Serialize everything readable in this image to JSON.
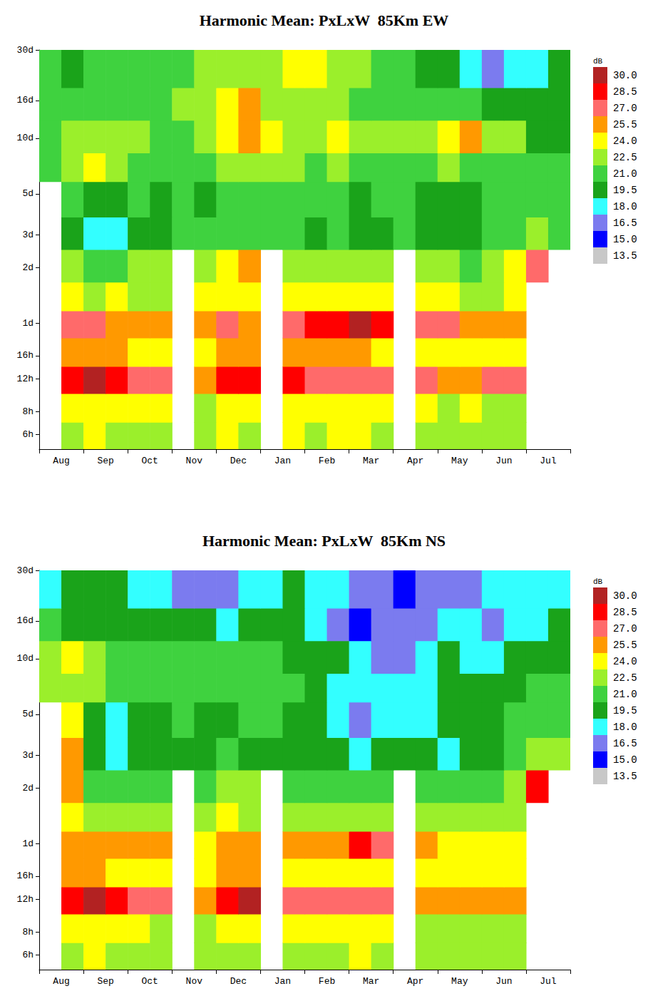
{
  "chart_data": [
    {
      "type": "heatmap",
      "title": "Harmonic Mean: PxLxW  85Km EW",
      "categories": [
        "Aug",
        "Sep",
        "Oct",
        "Nov",
        "Dec",
        "Jan",
        "Feb",
        "Mar",
        "Apr",
        "May",
        "Jun",
        "Jul"
      ],
      "log": "y",
      "grid": false,
      "ylim": [
        5,
        720
      ],
      "yticks": [
        {
          "value": 6,
          "label": "6h"
        },
        {
          "value": 8,
          "label": "8h"
        },
        {
          "value": 12,
          "label": "12h"
        },
        {
          "value": 16,
          "label": "16h"
        },
        {
          "value": 24,
          "label": "1d"
        },
        {
          "value": 48,
          "label": "2d"
        },
        {
          "value": 72,
          "label": "3d"
        },
        {
          "value": 120,
          "label": "5d"
        },
        {
          "value": 240,
          "label": "10d"
        },
        {
          "value": 384,
          "label": "16d"
        },
        {
          "value": 720,
          "label": "30d"
        }
      ],
      "y_bins": [
        5,
        7,
        10,
        14,
        20,
        28,
        40,
        60,
        90,
        140,
        200,
        300,
        450,
        720
      ],
      "cells": [
        [
          null,
          22,
          22.5,
          22,
          21.5,
          22,
          null,
          21.5,
          22.5,
          22,
          null,
          22.5,
          22,
          22.5,
          23,
          22,
          null,
          22,
          21.5,
          22,
          21.5,
          21,
          null,
          null
        ],
        [
          null,
          23,
          23.5,
          23,
          22.5,
          22.5,
          null,
          22,
          23,
          23,
          null,
          23.5,
          23,
          23,
          23.5,
          22.5,
          null,
          22.5,
          22,
          22.5,
          22,
          22,
          null,
          null
        ],
        [
          null,
          28,
          28.6,
          27.5,
          26,
          25.5,
          null,
          24.5,
          27,
          27.5,
          null,
          28,
          26.5,
          26,
          26.5,
          25.5,
          null,
          26,
          24.5,
          25,
          25.5,
          25.5,
          null,
          null
        ],
        [
          null,
          24,
          24.5,
          24,
          23.5,
          23,
          null,
          23,
          24,
          24,
          null,
          24.5,
          24,
          24,
          24,
          23.5,
          null,
          23.5,
          23,
          23,
          23,
          23.5,
          null,
          null
        ],
        [
          null,
          26.5,
          25.5,
          25,
          24.5,
          24,
          null,
          24,
          25.5,
          25,
          null,
          26,
          27,
          27.5,
          28.6,
          27,
          null,
          26,
          25.5,
          24.5,
          24,
          24,
          null,
          null
        ],
        [
          null,
          22.5,
          22,
          22.5,
          22,
          22,
          null,
          22.5,
          23,
          22.5,
          null,
          23,
          23,
          22.5,
          23,
          22.5,
          null,
          23,
          22.5,
          22,
          22,
          22.5,
          null,
          null
        ],
        [
          null,
          21,
          20,
          20.5,
          21,
          21.5,
          null,
          21,
          22.5,
          24.5,
          null,
          22,
          21.5,
          22,
          21.5,
          21,
          null,
          21.5,
          21,
          20.5,
          21,
          23,
          25.5,
          null
        ],
        [
          null,
          19,
          17,
          17.5,
          18.5,
          19,
          19.5,
          19.5,
          20,
          19.5,
          19.5,
          20,
          19,
          19.5,
          19,
          19,
          20,
          19,
          18.5,
          19,
          19.5,
          20,
          21,
          20
        ],
        [
          null,
          19.5,
          18.5,
          19,
          19.5,
          19,
          19.5,
          19,
          19.5,
          20,
          20.5,
          19.5,
          20,
          19.5,
          19,
          20,
          19.5,
          19,
          18.5,
          19,
          19.5,
          20,
          20.5,
          20
        ],
        [
          20,
          21,
          22.5,
          21,
          20.5,
          20,
          20,
          20.5,
          21,
          21.5,
          21,
          21,
          20.5,
          21,
          20,
          20.5,
          20,
          20.5,
          21,
          20,
          20.5,
          20,
          19.5,
          19.5
        ],
        [
          20.5,
          21.5,
          21,
          21.5,
          21,
          20,
          20.5,
          21,
          22.5,
          24.5,
          22.5,
          22,
          21.5,
          23,
          22,
          22,
          21.5,
          22,
          23.5,
          24.5,
          22,
          21,
          19,
          18.5
        ],
        [
          20,
          20.5,
          20,
          19.5,
          20,
          19.5,
          21,
          21.5,
          23,
          24.5,
          22,
          21,
          21.5,
          21,
          20.5,
          20.5,
          20.5,
          20,
          20.5,
          19.5,
          18.5,
          19,
          18,
          19
        ],
        [
          19.5,
          19,
          19.5,
          20,
          19.5,
          20,
          20.5,
          21.5,
          21,
          21.5,
          22,
          23.5,
          23,
          22,
          21.5,
          20,
          19.5,
          18.5,
          18,
          17.5,
          16,
          17,
          17.5,
          19
        ]
      ],
      "colorbar": {
        "label": "dB",
        "ticks": [
          13.5,
          {
            "value": 15,
            "label": "15.0"
          },
          16.5,
          {
            "value": 18,
            "label": "18.0"
          },
          19.5,
          {
            "value": 21,
            "label": "21.0"
          },
          22.5,
          {
            "value": 24,
            "label": "24.0"
          },
          25.5,
          {
            "value": 27,
            "label": "27.0"
          },
          28.5,
          {
            "value": 30,
            "label": "30.0"
          }
        ],
        "colors": [
          "#c8c8c8",
          "#0000ff",
          "#7b7bef",
          "#33ffff",
          "#1aa31a",
          "#3fd23f",
          "#9bef2b",
          "#ffff00",
          "#ff9900",
          "#ff6a6a",
          "#ff0000",
          "#b22222"
        ]
      }
    },
    {
      "type": "heatmap",
      "title": "Harmonic Mean: PxLxW  85Km NS",
      "categories": [
        "Aug",
        "Sep",
        "Oct",
        "Nov",
        "Dec",
        "Jan",
        "Feb",
        "Mar",
        "Apr",
        "May",
        "Jun",
        "Jul"
      ],
      "log": "y",
      "grid": false,
      "ylim": [
        5,
        720
      ],
      "yticks": [
        {
          "value": 6,
          "label": "6h"
        },
        {
          "value": 8,
          "label": "8h"
        },
        {
          "value": 12,
          "label": "12h"
        },
        {
          "value": 16,
          "label": "16h"
        },
        {
          "value": 24,
          "label": "1d"
        },
        {
          "value": 48,
          "label": "2d"
        },
        {
          "value": 72,
          "label": "3d"
        },
        {
          "value": 120,
          "label": "5d"
        },
        {
          "value": 240,
          "label": "10d"
        },
        {
          "value": 384,
          "label": "16d"
        },
        {
          "value": 720,
          "label": "30d"
        }
      ],
      "y_bins": [
        5,
        7,
        10,
        14,
        20,
        28,
        40,
        60,
        90,
        140,
        200,
        300,
        450,
        720
      ],
      "cells": [
        [
          null,
          22,
          22.5,
          22,
          21.5,
          22,
          null,
          21.5,
          22,
          22,
          null,
          22,
          21.5,
          22,
          22.5,
          21.5,
          null,
          21.5,
          21,
          21.5,
          21,
          21,
          null,
          null
        ],
        [
          null,
          23,
          23,
          22.5,
          22.5,
          22,
          null,
          22,
          23,
          23,
          null,
          23,
          22.5,
          22.5,
          23,
          22.5,
          null,
          22,
          22,
          22,
          21.5,
          21.5,
          null,
          null
        ],
        [
          null,
          28,
          28.6,
          27.5,
          26.5,
          26,
          null,
          25,
          27.5,
          28.5,
          null,
          26.5,
          25.5,
          25.5,
          26,
          25.5,
          null,
          25,
          24,
          24.5,
          24.5,
          24.5,
          null,
          null
        ],
        [
          null,
          24,
          24,
          23.5,
          23.5,
          23,
          null,
          23,
          24,
          24,
          null,
          23.5,
          23.5,
          23,
          23.5,
          23.5,
          null,
          23,
          22.5,
          22.5,
          22.5,
          23,
          null,
          null
        ],
        [
          null,
          25,
          24.5,
          24.5,
          24,
          24,
          null,
          23.5,
          24.5,
          24.5,
          null,
          24,
          24.5,
          25,
          27,
          25.5,
          null,
          24.5,
          23.5,
          23.5,
          23,
          23,
          null,
          null
        ],
        [
          null,
          22.5,
          22,
          21.5,
          21.5,
          22,
          null,
          22,
          22.5,
          22,
          null,
          22,
          21.5,
          22,
          22,
          21.5,
          null,
          21.5,
          21,
          21,
          21,
          22,
          null,
          null
        ],
        [
          null,
          24.5,
          20,
          19.5,
          20,
          20.5,
          null,
          20.5,
          21,
          21,
          null,
          20.5,
          20,
          20,
          19.5,
          20,
          null,
          20,
          19.5,
          20,
          20.5,
          22,
          27,
          null
        ],
        [
          null,
          25,
          18,
          17.5,
          18,
          18.5,
          19,
          19,
          19.5,
          19,
          19,
          18.5,
          18,
          18,
          17.5,
          18,
          18.5,
          18,
          17.5,
          18,
          18.5,
          19.5,
          21,
          21
        ],
        [
          null,
          23,
          18.5,
          17.5,
          18.5,
          19,
          19.5,
          19,
          19,
          19.5,
          20,
          19,
          18.5,
          17,
          16,
          16.5,
          17,
          17.5,
          18,
          18.5,
          19,
          20,
          20.5,
          20.5
        ],
        [
          21,
          22,
          21,
          20,
          19.5,
          20,
          20.5,
          20,
          20,
          20.5,
          20,
          19.5,
          18.5,
          17.5,
          17,
          17.5,
          16.5,
          17.5,
          18,
          18.5,
          18,
          19,
          19.5,
          19.5
        ],
        [
          21.5,
          22.5,
          21,
          20.5,
          20,
          19.5,
          20,
          20.5,
          20,
          19.5,
          19.5,
          19,
          18,
          18.5,
          16.5,
          16,
          15.5,
          17,
          18,
          17.5,
          17.5,
          18,
          18.5,
          18.5
        ],
        [
          19.5,
          19,
          18.5,
          18,
          18.5,
          18.5,
          19,
          18.5,
          17.5,
          18,
          18.5,
          18,
          17,
          16,
          14.8,
          15,
          15.5,
          16,
          16.5,
          16.5,
          16,
          17,
          17.5,
          18
        ],
        [
          17.5,
          18,
          18.5,
          18,
          17.5,
          17,
          16,
          15.5,
          16,
          17,
          17.5,
          18,
          17.5,
          16.5,
          15.5,
          15,
          14.5,
          15,
          15.5,
          16,
          16.5,
          17,
          17.5,
          17.5
        ]
      ],
      "colorbar": {
        "label": "dB",
        "ticks": [
          13.5,
          {
            "value": 15,
            "label": "15.0"
          },
          16.5,
          {
            "value": 18,
            "label": "18.0"
          },
          19.5,
          {
            "value": 21,
            "label": "21.0"
          },
          22.5,
          {
            "value": 24,
            "label": "24.0"
          },
          25.5,
          {
            "value": 27,
            "label": "27.0"
          },
          28.5,
          {
            "value": 30,
            "label": "30.0"
          }
        ],
        "colors": [
          "#c8c8c8",
          "#0000ff",
          "#7b7bef",
          "#33ffff",
          "#1aa31a",
          "#3fd23f",
          "#9bef2b",
          "#ffff00",
          "#ff9900",
          "#ff6a6a",
          "#ff0000",
          "#b22222"
        ]
      }
    }
  ]
}
